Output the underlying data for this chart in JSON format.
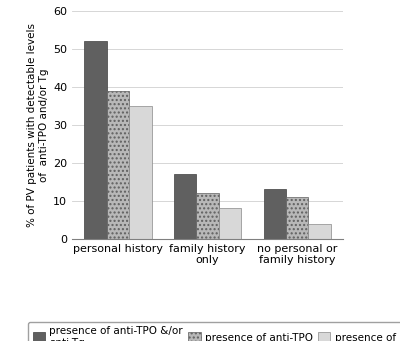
{
  "categories": [
    "personal history",
    "family history\nonly",
    "no personal or\nfamily history"
  ],
  "series": [
    {
      "label": "presence of anti-TPO &/or\nanti-Tg",
      "values": [
        52,
        17,
        13
      ],
      "color": "#606060",
      "hatch": ""
    },
    {
      "label": "presence of anti-TPO",
      "values": [
        39,
        12,
        11
      ],
      "color": "#b0b0b0",
      "hatch": "xxx"
    },
    {
      "label": "presence of anti-Tg",
      "values": [
        35,
        8,
        4
      ],
      "color": "#d4d4d4",
      "hatch": ""
    }
  ],
  "ylabel": "% of PV patients with detectable levels\nof  anti-TPO and/or Tg",
  "ylim": [
    0,
    60
  ],
  "yticks": [
    0,
    10,
    20,
    30,
    40,
    50,
    60
  ],
  "background_color": "#ffffff",
  "bar_width": 0.25,
  "axis_fontsize": 7.5,
  "tick_fontsize": 8,
  "legend_fontsize": 7.5
}
